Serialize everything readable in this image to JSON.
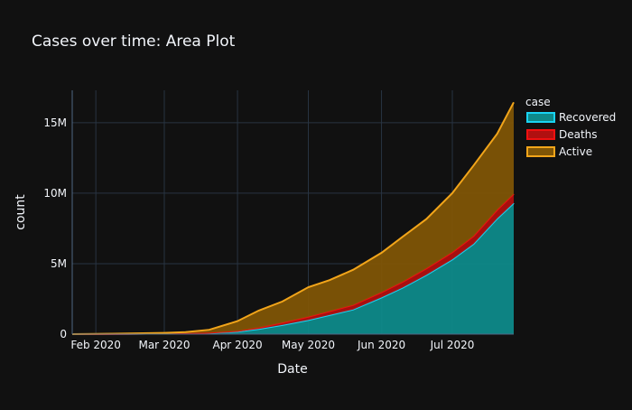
{
  "chart_data": {
    "type": "area",
    "stacked": true,
    "title": "Cases over time: Area Plot",
    "xlabel": "Date",
    "ylabel": "count",
    "x_range": [
      "2020-01-22",
      "2020-07-27"
    ],
    "ylim": [
      0,
      17300000
    ],
    "y_ticks": [
      {
        "value": 0,
        "label": "0"
      },
      {
        "value": 5000000,
        "label": "5M"
      },
      {
        "value": 10000000,
        "label": "10M"
      },
      {
        "value": 15000000,
        "label": "15M"
      }
    ],
    "x_ticks": [
      {
        "date": "2020-02-01",
        "label": "Feb 2020"
      },
      {
        "date": "2020-03-01",
        "label": "Mar 2020"
      },
      {
        "date": "2020-04-01",
        "label": "Apr 2020"
      },
      {
        "date": "2020-05-01",
        "label": "May 2020"
      },
      {
        "date": "2020-06-01",
        "label": "Jun 2020"
      },
      {
        "date": "2020-07-01",
        "label": "Jul 2020"
      }
    ],
    "grid": true,
    "legend": {
      "title": "case",
      "placement": "top-right"
    },
    "dates": [
      "2020-01-22",
      "2020-02-01",
      "2020-02-15",
      "2020-03-01",
      "2020-03-10",
      "2020-03-20",
      "2020-04-01",
      "2020-04-10",
      "2020-04-20",
      "2020-05-01",
      "2020-05-10",
      "2020-05-20",
      "2020-06-01",
      "2020-06-10",
      "2020-06-20",
      "2020-07-01",
      "2020-07-10",
      "2020-07-20",
      "2020-07-27"
    ],
    "series": [
      {
        "name": "Recovered",
        "color": "#19d3f3",
        "fill": "#0e8a8a",
        "values": [
          0,
          2000,
          10000,
          45000,
          60000,
          90000,
          180000,
          370000,
          650000,
          1000000,
          1350000,
          1750000,
          2600000,
          3300000,
          4200000,
          5300000,
          6400000,
          8200000,
          9300000
        ]
      },
      {
        "name": "Deaths",
        "color": "#ef1010",
        "fill": "#b01010",
        "values": [
          17,
          300,
          1600,
          3000,
          4300,
          10000,
          42000,
          100000,
          165000,
          230000,
          280000,
          320000,
          370000,
          415000,
          460000,
          510000,
          560000,
          620000,
          650000
        ]
      },
      {
        "name": "Active",
        "color": "#f2a51a",
        "fill": "#7f5506",
        "values": [
          560,
          9700,
          40000,
          40000,
          75000,
          210000,
          700000,
          1200000,
          1500000,
          2100000,
          2200000,
          2500000,
          2800000,
          3200000,
          3500000,
          4200000,
          5000000,
          5400000,
          6500000
        ]
      }
    ]
  }
}
